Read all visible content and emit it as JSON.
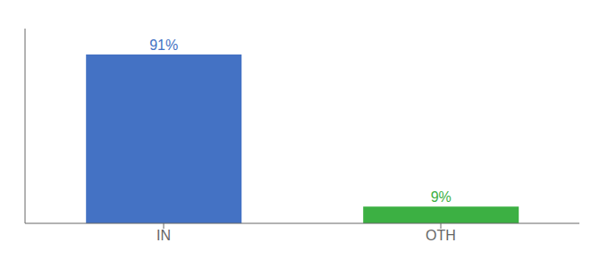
{
  "chart_data": {
    "type": "bar",
    "categories": [
      "IN",
      "OTH"
    ],
    "values": [
      91,
      9
    ],
    "value_labels": [
      "91%",
      "9%"
    ],
    "colors": [
      "#4472c4",
      "#3cb043"
    ],
    "ylim": [
      0,
      105
    ],
    "yticks": [],
    "grid": false,
    "data_labels": true,
    "tick_labels": "x"
  }
}
